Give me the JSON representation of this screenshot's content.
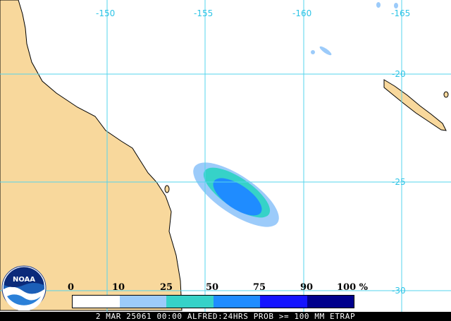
{
  "map": {
    "longitude_labels": [
      "-150",
      "-155",
      "-160",
      "-165"
    ],
    "latitude_labels": [
      "-20",
      "-25",
      "-30"
    ],
    "colors": {
      "land": "#f8d89c",
      "ocean": "#ffffff",
      "grid": "#56d4ec",
      "coast": "#000000",
      "label": "#2ec4e6"
    }
  },
  "legend": {
    "ticks": [
      "0",
      "10",
      "25",
      "50",
      "75",
      "90",
      "100 %"
    ],
    "colors": [
      "#ffffff",
      "#9ccbfa",
      "#36d2c8",
      "#1f8cff",
      "#1414ff",
      "#00008c"
    ]
  },
  "footer": {
    "text": "2 MAR 25061 00:00 ALFRED:24HRS PROB >= 100 MM ETRAP"
  },
  "logo": {
    "text": "NOAA",
    "icon": "noaa-logo-icon"
  }
}
